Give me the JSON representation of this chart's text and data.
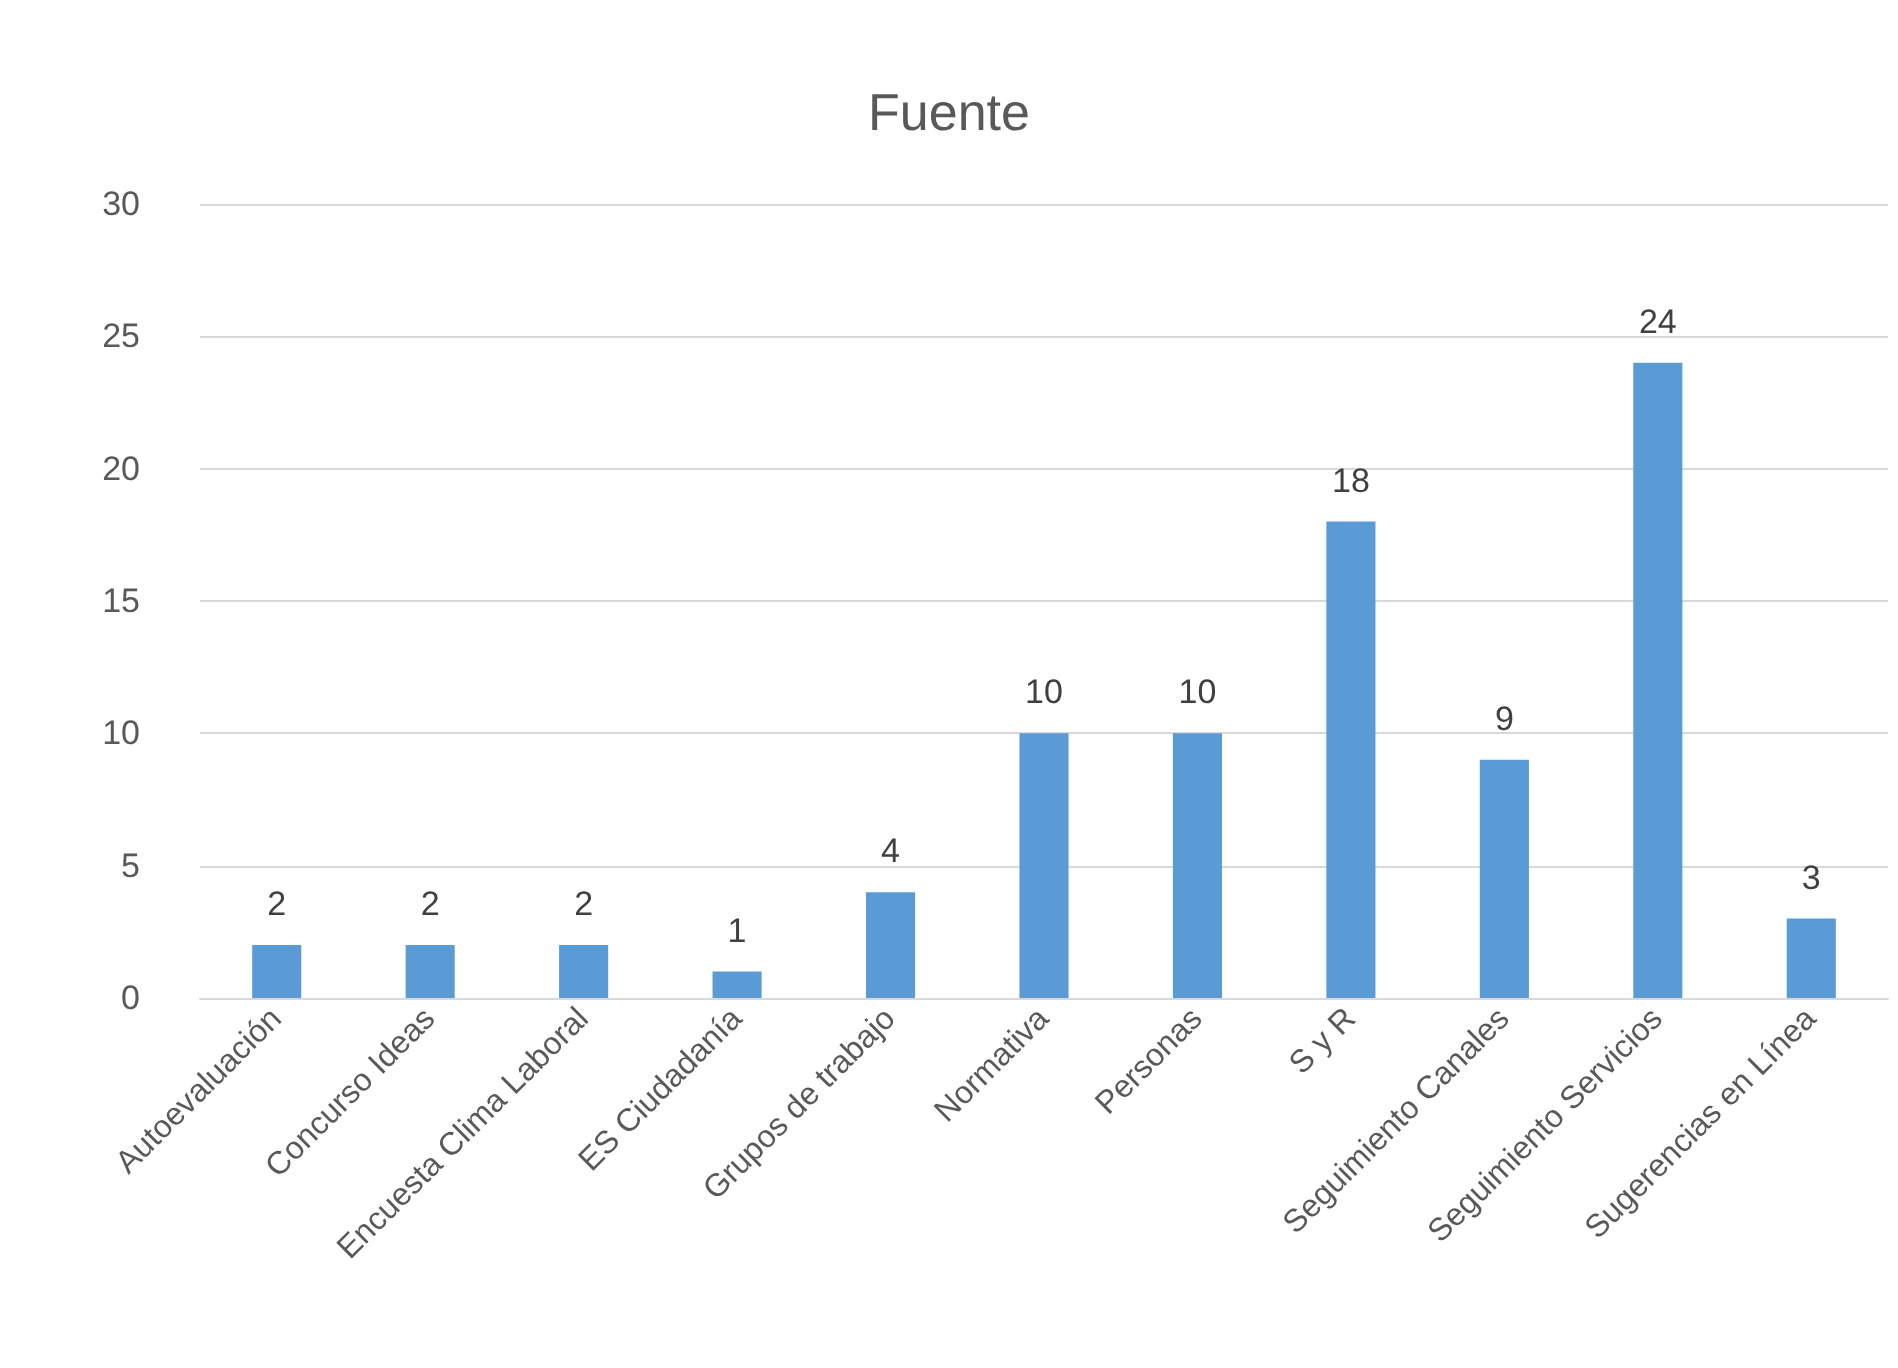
{
  "chart_data": {
    "type": "bar",
    "title": "Fuente",
    "categories": [
      "Autoevaluación",
      "Concurso Ideas",
      "Encuesta Clima Laboral",
      "ES Ciudadanía",
      "Grupos de trabajo",
      "Normativa",
      "Personas",
      "S y R",
      "Seguimiento Canales",
      "Seguimiento Servicios",
      "Sugerencias en Línea"
    ],
    "values": [
      2,
      2,
      2,
      1,
      4,
      10,
      10,
      18,
      9,
      24,
      3
    ],
    "color": "#5b9bd5",
    "ylim": [
      0,
      30
    ],
    "yticks": [
      0,
      5,
      10,
      15,
      20,
      25,
      30
    ],
    "grid": "y",
    "data_labels": true
  }
}
